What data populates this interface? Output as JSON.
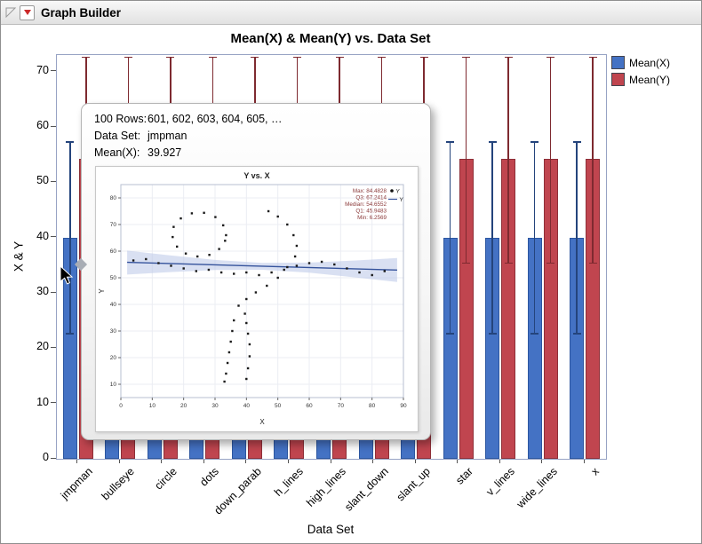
{
  "window": {
    "title": "Graph Builder"
  },
  "chart": {
    "title": "Mean(X) & Mean(Y) vs. Data Set",
    "x_axis_label": "Data Set",
    "y_axis_label": "X & Y"
  },
  "chart_data": [
    {
      "type": "bar",
      "title": "Mean(X) & Mean(Y) vs. Data Set",
      "xlabel": "Data Set",
      "ylabel": "X & Y",
      "ylim": [
        0,
        73
      ],
      "yticks": [
        0,
        10,
        20,
        30,
        40,
        50,
        60,
        70
      ],
      "legend_position": "top-right",
      "categories": [
        "jmpman",
        "bullseye",
        "circle",
        "dots",
        "down_parab",
        "h_lines",
        "high_lines",
        "slant_down",
        "slant_up",
        "star",
        "v_lines",
        "wide_lines",
        "x"
      ],
      "series": [
        {
          "name": "Mean(X)",
          "color": "#4472c4",
          "border": "#2c56a0",
          "whisker": "#24447c",
          "values": [
            39.93,
            39.93,
            39.93,
            39.93,
            39.93,
            39.93,
            39.93,
            39.93,
            39.93,
            39.93,
            39.93,
            39.93,
            39.93
          ],
          "error_low": 22.6,
          "error_high": 57.3
        },
        {
          "name": "Mean(Y)",
          "color": "#c0454f",
          "border": "#8e2f38",
          "whisker": "#7e2a30",
          "values": [
            54.27,
            54.27,
            54.27,
            54.27,
            54.27,
            54.27,
            54.27,
            54.27,
            54.27,
            54.27,
            54.27,
            54.27,
            54.27
          ],
          "error_low": 35.4,
          "error_high": 72.6
        }
      ]
    },
    {
      "type": "scatter",
      "title": "Y vs. X",
      "xlabel": "X",
      "ylabel": "Y",
      "xlim": [
        0,
        90
      ],
      "ylim": [
        5,
        85
      ],
      "xticks": [
        0,
        10,
        20,
        30,
        40,
        50,
        60,
        70,
        80,
        90
      ],
      "yticks": [
        10,
        20,
        30,
        40,
        50,
        60,
        70,
        80
      ],
      "legend": [
        {
          "marker": "point",
          "label": "Y"
        },
        {
          "marker": "line",
          "label": "Y"
        }
      ],
      "stats": {
        "color": "#8b3a3a",
        "lines": [
          "Max: 84.4828",
          "Q3: 67.2414",
          "Median: 54.6552",
          "Q1: 45.9483",
          "Min: 6.2569"
        ]
      },
      "points_color": "#1a1a1a",
      "points": [
        [
          33.5,
          66
        ],
        [
          32.6,
          69.7
        ],
        [
          30.1,
          72.8
        ],
        [
          26.5,
          74.4
        ],
        [
          22.6,
          74.2
        ],
        [
          19.1,
          72.3
        ],
        [
          16.8,
          69.1
        ],
        [
          16.5,
          65.3
        ],
        [
          17.9,
          61.7
        ],
        [
          20.7,
          59.1
        ],
        [
          24.4,
          58
        ],
        [
          28.2,
          58.6
        ],
        [
          31.3,
          60.8
        ],
        [
          33.2,
          63.9
        ],
        [
          4,
          56.5
        ],
        [
          8,
          57
        ],
        [
          12,
          55.5
        ],
        [
          16,
          54.5
        ],
        [
          20,
          53.5
        ],
        [
          24,
          52.5
        ],
        [
          28,
          53
        ],
        [
          32,
          52
        ],
        [
          36,
          51.5
        ],
        [
          40,
          52
        ],
        [
          44,
          51
        ],
        [
          48,
          52
        ],
        [
          52,
          53
        ],
        [
          56,
          54.5
        ],
        [
          60,
          55.5
        ],
        [
          64,
          56
        ],
        [
          68,
          55
        ],
        [
          72,
          53.5
        ],
        [
          76,
          52
        ],
        [
          80,
          51
        ],
        [
          84,
          52.5
        ],
        [
          47,
          75
        ],
        [
          50,
          73
        ],
        [
          53,
          70
        ],
        [
          55,
          66
        ],
        [
          56,
          62
        ],
        [
          55.5,
          58
        ],
        [
          53,
          54
        ],
        [
          50,
          50
        ],
        [
          46.5,
          47
        ],
        [
          43,
          44.5
        ],
        [
          40,
          42
        ],
        [
          37.5,
          39.5
        ],
        [
          36,
          34
        ],
        [
          35.5,
          30
        ],
        [
          35,
          26
        ],
        [
          34.5,
          22
        ],
        [
          34,
          18
        ],
        [
          33.5,
          14
        ],
        [
          33,
          11
        ],
        [
          39.5,
          36.5
        ],
        [
          40,
          33
        ],
        [
          40.5,
          29
        ],
        [
          41,
          25
        ],
        [
          41,
          20.5
        ],
        [
          40.5,
          16
        ],
        [
          40,
          12
        ]
      ],
      "fit": {
        "color": "#35539c",
        "x": [
          2,
          88
        ],
        "y": [
          55.8,
          52.9
        ]
      },
      "band": {
        "color": "#b9c6e8",
        "opacity": 0.55,
        "x": [
          2,
          15,
          30,
          45,
          60,
          75,
          88
        ],
        "upper": [
          60.2,
          58.5,
          56.7,
          55.6,
          55.7,
          56.5,
          57.4
        ],
        "lower": [
          51.2,
          52.1,
          52.9,
          53.0,
          51.9,
          50.1,
          48.4
        ]
      }
    }
  ],
  "tooltip": {
    "lines": [
      {
        "label": "100 Rows:",
        "value": "601, 602, 603, 604, 605, …"
      },
      {
        "label": "Data Set:",
        "value": "jmpman"
      },
      {
        "label": "Mean(X):",
        "value": "39.927"
      }
    ]
  }
}
